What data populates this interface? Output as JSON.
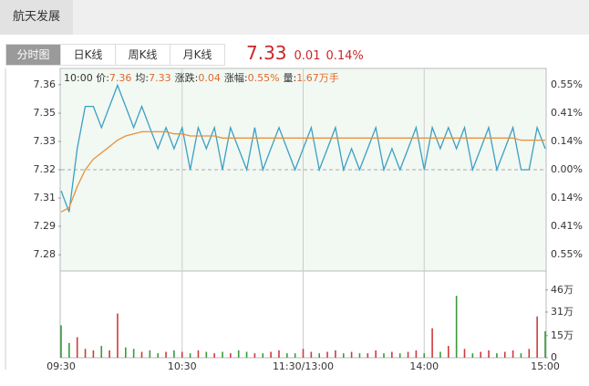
{
  "header": {
    "stock": "航天发展"
  },
  "tabs": [
    "分时图",
    "日K线",
    "周K线",
    "月K线"
  ],
  "quote": {
    "price": "7.33",
    "change": "0.01",
    "change_pct": "0.14%"
  },
  "info": {
    "time": "10:00",
    "items": [
      {
        "label": "价:",
        "value": "7.36"
      },
      {
        "label": "均:",
        "value": "7.33"
      },
      {
        "label": "涨跌:",
        "value": "0.04"
      },
      {
        "label": "涨幅:",
        "value": "0.55%"
      },
      {
        "label": "量:",
        "value": "1.67万手"
      }
    ]
  },
  "chart_data": {
    "type": "line",
    "x": [
      0,
      4,
      8,
      12,
      16,
      20,
      24,
      28,
      32,
      36,
      40,
      44,
      48,
      52,
      56,
      60,
      64,
      68,
      72,
      76,
      80,
      84,
      88,
      92,
      96,
      100,
      104,
      108,
      112,
      116,
      120,
      124,
      128,
      132,
      136,
      140,
      144,
      148,
      152,
      156,
      160,
      164,
      168,
      172,
      176,
      180,
      184,
      188,
      192,
      196,
      200,
      204,
      208,
      212,
      216,
      220,
      224,
      228,
      232,
      236,
      240
    ],
    "xlim": [
      0,
      240
    ],
    "xticks": [
      {
        "value": 0,
        "label": "09:30"
      },
      {
        "value": 60,
        "label": "10:30"
      },
      {
        "value": 120,
        "label": "11:30/13:00"
      },
      {
        "value": 180,
        "label": "14:00"
      },
      {
        "value": 240,
        "label": "15:00"
      }
    ],
    "ylim": [
      7.272,
      7.368
    ],
    "yticks": [
      {
        "value": 7.3603,
        "label": "7.36"
      },
      {
        "value": 7.3468,
        "label": "7.35"
      },
      {
        "value": 7.3334,
        "label": "7.33"
      },
      {
        "value": 7.32,
        "label": "7.32"
      },
      {
        "value": 7.3066,
        "label": "7.31"
      },
      {
        "value": 7.2932,
        "label": "7.29"
      },
      {
        "value": 7.2797,
        "label": "7.28"
      }
    ],
    "right_labels": [
      "0.55%",
      "0.41%",
      "0.14%",
      "0.00%",
      "0.14%",
      "0.41%",
      "0.55%"
    ],
    "prev_close": 7.32,
    "up_color": "#d03a3a",
    "down_color": "#3a9a3a",
    "flat_color": "#999999",
    "series": [
      {
        "name": "价",
        "color": "#3aa0c4",
        "values": [
          7.31,
          7.3,
          7.33,
          7.35,
          7.35,
          7.34,
          7.35,
          7.36,
          7.35,
          7.34,
          7.35,
          7.34,
          7.33,
          7.34,
          7.33,
          7.34,
          7.32,
          7.34,
          7.33,
          7.34,
          7.32,
          7.34,
          7.33,
          7.32,
          7.34,
          7.32,
          7.33,
          7.34,
          7.33,
          7.32,
          7.33,
          7.34,
          7.32,
          7.33,
          7.34,
          7.32,
          7.33,
          7.32,
          7.33,
          7.34,
          7.32,
          7.33,
          7.32,
          7.33,
          7.34,
          7.32,
          7.34,
          7.33,
          7.34,
          7.33,
          7.34,
          7.32,
          7.33,
          7.34,
          7.32,
          7.33,
          7.34,
          7.32,
          7.32,
          7.34,
          7.33
        ]
      },
      {
        "name": "均",
        "color": "#e8913a",
        "values": [
          7.3,
          7.302,
          7.312,
          7.32,
          7.325,
          7.328,
          7.331,
          7.334,
          7.336,
          7.337,
          7.338,
          7.338,
          7.338,
          7.338,
          7.337,
          7.337,
          7.336,
          7.336,
          7.336,
          7.336,
          7.335,
          7.335,
          7.335,
          7.335,
          7.335,
          7.335,
          7.335,
          7.335,
          7.335,
          7.335,
          7.335,
          7.335,
          7.335,
          7.335,
          7.335,
          7.335,
          7.335,
          7.335,
          7.335,
          7.335,
          7.335,
          7.335,
          7.335,
          7.335,
          7.335,
          7.335,
          7.335,
          7.335,
          7.335,
          7.335,
          7.335,
          7.335,
          7.335,
          7.335,
          7.335,
          7.335,
          7.335,
          7.334,
          7.334,
          7.334,
          7.334
        ]
      }
    ],
    "volume": {
      "ylim": [
        0,
        57
      ],
      "yticks": [
        {
          "value": 46,
          "label": "46万"
        },
        {
          "value": 31,
          "label": "31万"
        },
        {
          "value": 15,
          "label": "15万"
        },
        0
      ],
      "values": [
        22,
        10,
        14,
        6,
        5,
        8,
        5,
        30,
        7,
        6,
        4,
        5,
        3,
        4,
        5,
        4,
        3,
        5,
        4,
        3,
        4,
        3,
        5,
        4,
        3,
        3,
        4,
        5,
        3,
        3,
        6,
        4,
        3,
        4,
        5,
        3,
        4,
        3,
        3,
        5,
        3,
        4,
        3,
        4,
        5,
        3,
        20,
        4,
        8,
        42,
        6,
        3,
        4,
        5,
        3,
        4,
        5,
        3,
        6,
        28,
        18
      ]
    }
  }
}
